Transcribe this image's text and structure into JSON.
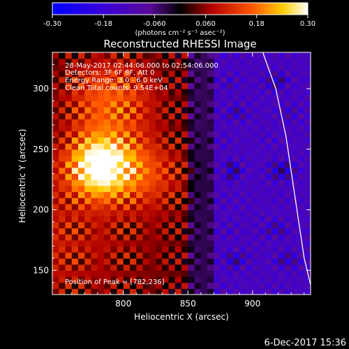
{
  "colorbar": {
    "ticks": [
      "-0.30",
      "-0.18",
      "-0.060",
      "0.060",
      "0.18",
      "0.30"
    ],
    "tick_values": [
      -0.3,
      -0.18,
      -0.06,
      0.06,
      0.18,
      0.3
    ],
    "units": "(photons cm⁻² s⁻¹ asec⁻²)",
    "range": [
      -0.3,
      0.3
    ]
  },
  "chart_data": {
    "type": "heatmap",
    "title": "Reconstructed RHESSI Image",
    "xlabel": "Heliocentric X (arcsec)",
    "ylabel": "Heliocentric Y (arcsec)",
    "xlim": [
      745,
      945
    ],
    "ylim": [
      130,
      330
    ],
    "xticks": [
      800,
      850,
      900
    ],
    "yticks": [
      150,
      200,
      250,
      300
    ],
    "annotations": [
      "28-May-2017 02:44:06.000 to 02:54:06.000",
      "Detectors: 3F 6F 8F, Att 0",
      "Energy Range: 3.0 - 6.0 keV",
      "Clean     Total counts: 9.54E+04"
    ],
    "peak_label": "Position of Peak = [782,236]",
    "peak": [
      782,
      236
    ],
    "limb_arc": [
      [
        908,
        330
      ],
      [
        918,
        300
      ],
      [
        926,
        260
      ],
      [
        933,
        210
      ],
      [
        940,
        160
      ],
      [
        945,
        138
      ]
    ],
    "colors": {
      "positive": "#ff8800",
      "negative": "#3b12c8",
      "limb": "#ffffff"
    }
  },
  "footer": {
    "date": "6-Dec-2017 15:36"
  }
}
